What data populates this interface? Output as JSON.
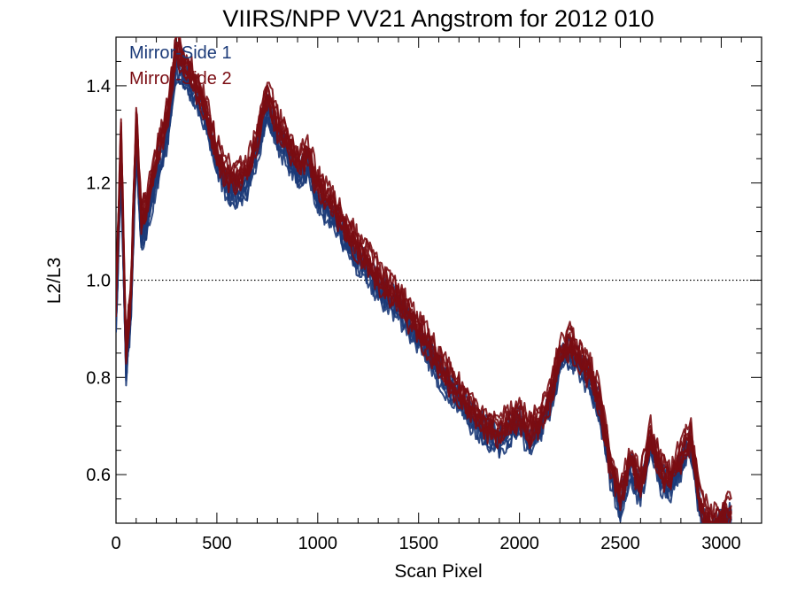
{
  "colors": {
    "mirror_side_1": "#1b3a78",
    "mirror_side_2": "#7a0c12",
    "axis": "#000000",
    "reference_line": "#000000"
  },
  "chart_data": {
    "type": "line",
    "title": "VIIRS/NPP VV21 Angstrom for 2012 010",
    "xlabel": "Scan Pixel",
    "ylabel": "L2/L3",
    "xlim": [
      0,
      3200
    ],
    "ylim": [
      0.5,
      1.5
    ],
    "xticks": [
      0,
      500,
      1000,
      1500,
      2000,
      2500,
      3000
    ],
    "yticks": [
      0.6,
      0.8,
      1.0,
      1.2,
      1.4
    ],
    "xtick_labels": [
      "0",
      "500",
      "1000",
      "1500",
      "2000",
      "2500",
      "3000"
    ],
    "ytick_labels": [
      "0.6",
      "0.8",
      "1.0",
      "1.2",
      "1.4"
    ],
    "reference_line": {
      "y": 1.0,
      "style": "dotted"
    },
    "legend": {
      "position": "top-left",
      "entries": [
        "Mirror-Side 1",
        "Mirror-Side 2"
      ]
    },
    "grid": false,
    "series": [
      {
        "name": "Mirror-Side 1",
        "color": "#1b3a78",
        "x": [
          0,
          25,
          50,
          75,
          100,
          125,
          150,
          200,
          250,
          300,
          350,
          400,
          450,
          500,
          550,
          600,
          650,
          700,
          750,
          800,
          850,
          900,
          950,
          1000,
          1050,
          1100,
          1150,
          1200,
          1250,
          1300,
          1350,
          1400,
          1450,
          1500,
          1550,
          1600,
          1650,
          1700,
          1750,
          1800,
          1850,
          1900,
          1950,
          2000,
          2050,
          2100,
          2150,
          2200,
          2250,
          2300,
          2350,
          2400,
          2450,
          2500,
          2550,
          2600,
          2650,
          2700,
          2750,
          2800,
          2850,
          2900,
          2950,
          3000,
          3050
        ],
        "y": [
          0.92,
          1.25,
          0.82,
          0.95,
          1.28,
          1.1,
          1.12,
          1.22,
          1.3,
          1.45,
          1.42,
          1.38,
          1.33,
          1.25,
          1.2,
          1.19,
          1.2,
          1.28,
          1.36,
          1.3,
          1.27,
          1.22,
          1.25,
          1.18,
          1.15,
          1.12,
          1.08,
          1.05,
          1.02,
          0.99,
          0.97,
          0.95,
          0.92,
          0.89,
          0.86,
          0.82,
          0.79,
          0.76,
          0.73,
          0.71,
          0.69,
          0.68,
          0.7,
          0.71,
          0.68,
          0.7,
          0.75,
          0.84,
          0.86,
          0.83,
          0.8,
          0.74,
          0.61,
          0.55,
          0.62,
          0.57,
          0.67,
          0.6,
          0.58,
          0.63,
          0.67,
          0.52,
          0.49,
          0.5,
          0.52
        ]
      },
      {
        "name": "Mirror-Side 2",
        "color": "#7a0c12",
        "x": [
          0,
          25,
          50,
          75,
          100,
          125,
          150,
          200,
          250,
          300,
          350,
          400,
          450,
          500,
          550,
          600,
          650,
          700,
          750,
          800,
          850,
          900,
          950,
          1000,
          1050,
          1100,
          1150,
          1200,
          1250,
          1300,
          1350,
          1400,
          1450,
          1500,
          1550,
          1600,
          1650,
          1700,
          1750,
          1800,
          1850,
          1900,
          1950,
          2000,
          2050,
          2100,
          2150,
          2200,
          2250,
          2300,
          2350,
          2400,
          2450,
          2500,
          2550,
          2600,
          2650,
          2700,
          2750,
          2800,
          2850,
          2900,
          2950,
          3000,
          3050
        ],
        "y": [
          0.95,
          1.3,
          0.85,
          0.98,
          1.33,
          1.13,
          1.15,
          1.25,
          1.33,
          1.48,
          1.44,
          1.4,
          1.34,
          1.26,
          1.22,
          1.21,
          1.22,
          1.3,
          1.38,
          1.32,
          1.29,
          1.24,
          1.26,
          1.2,
          1.17,
          1.14,
          1.1,
          1.07,
          1.04,
          1.01,
          0.98,
          0.96,
          0.93,
          0.9,
          0.87,
          0.83,
          0.8,
          0.77,
          0.74,
          0.72,
          0.7,
          0.69,
          0.71,
          0.72,
          0.69,
          0.71,
          0.76,
          0.85,
          0.87,
          0.84,
          0.81,
          0.75,
          0.62,
          0.56,
          0.63,
          0.58,
          0.68,
          0.61,
          0.59,
          0.64,
          0.68,
          0.53,
          0.5,
          0.51,
          0.53
        ]
      }
    ]
  }
}
